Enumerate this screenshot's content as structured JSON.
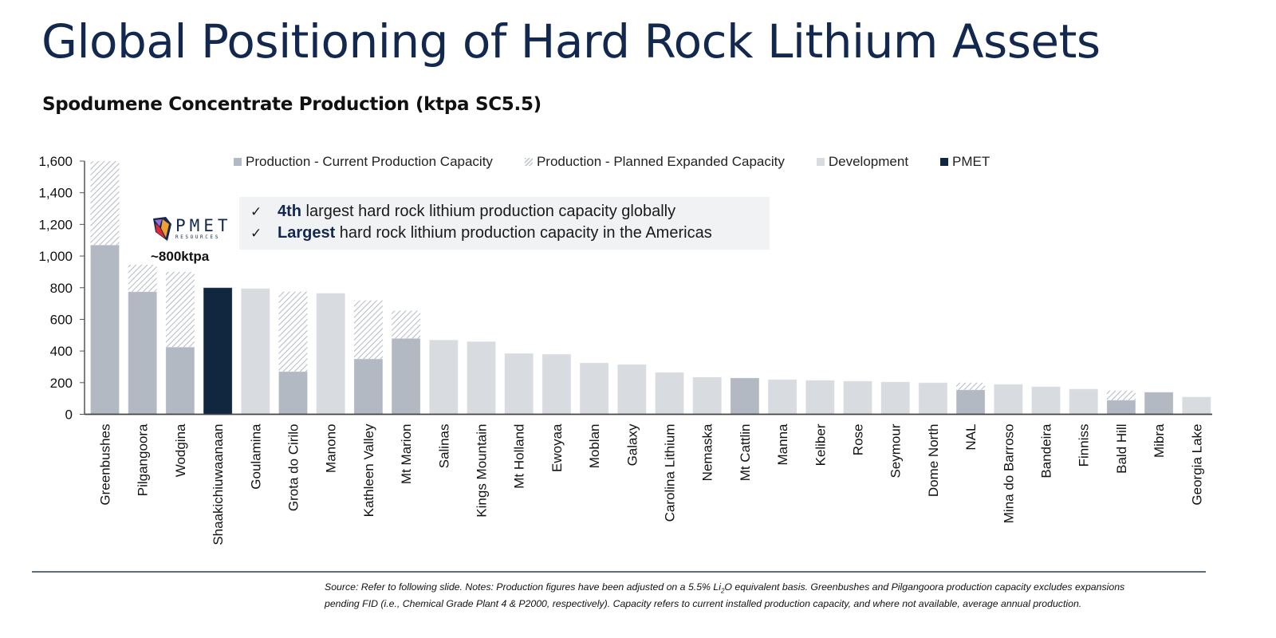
{
  "header": {
    "title": "Global Positioning of Hard Rock Lithium Assets",
    "subtitle": "Spodumene Concentrate Production (ktpa SC5.5)"
  },
  "legend": [
    {
      "label": "Production - Current Production Capacity",
      "key": "current",
      "color": "#b3b9c3"
    },
    {
      "label": "Production - Planned Expanded Capacity",
      "key": "expanded",
      "color": "#b3b9c3",
      "pattern": "hatch"
    },
    {
      "label": "Development",
      "key": "development",
      "color": "#d8dbe0"
    },
    {
      "label": "PMET",
      "key": "pmet",
      "color": "#11263f"
    }
  ],
  "callout": {
    "check_symbol": "✓",
    "lines": [
      {
        "bold": "4th",
        "rest": " largest hard rock lithium production capacity globally"
      },
      {
        "bold": "Largest",
        "rest": " hard rock lithium production capacity in the Americas"
      }
    ]
  },
  "logo": {
    "name": "PMET",
    "sub": "RESOURCES",
    "icon": "pmet-crystal-logo-icon"
  },
  "pmet_annotation": "~800ktpa",
  "footnote": {
    "pre": "Source: Refer to following slide. Notes: Production figures have been adjusted on a 5.5% Li",
    "sub": "2",
    "post": "O equivalent basis. Greenbushes and Pilgangoora production capacity excludes expansions pending FID (i.e., Chemical Grade Plant 4 & P2000, respectively). Capacity refers to current installed production capacity, and where not available, average annual production."
  },
  "chart_data": {
    "type": "bar",
    "stacked": true,
    "title": "Spodumene Concentrate Production (ktpa SC5.5)",
    "xlabel": "",
    "ylabel": "",
    "ylim": [
      0,
      1600
    ],
    "yticks": [
      0,
      200,
      400,
      600,
      800,
      1000,
      1200,
      1400,
      1600
    ],
    "ytick_labels": [
      "0",
      "200",
      "400",
      "600",
      "800",
      "1,000",
      "1,200",
      "1,400",
      "1,600"
    ],
    "grid": false,
    "legend_position": "top",
    "categories": [
      "Greenbushes",
      "Pilgangoora",
      "Wodgina",
      "Shaakichiuwaanaan",
      "Goulamina",
      "Grota do Cirilo",
      "Manono",
      "Kathleen Valley",
      "Mt Marion",
      "Salinas",
      "Kings Mountain",
      "Mt Holland",
      "Ewoyaa",
      "Moblan",
      "Galaxy",
      "Carolina Lithium",
      "Nemaska",
      "Mt Cattlin",
      "Manna",
      "Keliber",
      "Rose",
      "Seymour",
      "Dome North",
      "NAL",
      "Mina do Barroso",
      "Bandeira",
      "Finniss",
      "Bald Hill",
      "Mibra",
      "Georgia Lake"
    ],
    "bar_type": [
      "production",
      "production",
      "production",
      "pmet",
      "development",
      "production",
      "development",
      "production",
      "production",
      "development",
      "development",
      "development",
      "development",
      "development",
      "development",
      "development",
      "development",
      "production",
      "development",
      "development",
      "development",
      "development",
      "development",
      "production",
      "development",
      "development",
      "development",
      "production",
      "production",
      "development"
    ],
    "series": [
      {
        "name": "Production - Current Production Capacity",
        "values": [
          1070,
          775,
          425,
          0,
          0,
          270,
          0,
          350,
          480,
          0,
          0,
          0,
          0,
          0,
          0,
          0,
          0,
          230,
          0,
          0,
          0,
          0,
          0,
          155,
          0,
          0,
          0,
          90,
          140,
          0
        ]
      },
      {
        "name": "Production - Planned Expanded Capacity",
        "values": [
          530,
          170,
          475,
          0,
          0,
          505,
          0,
          370,
          175,
          0,
          0,
          0,
          0,
          0,
          0,
          0,
          0,
          0,
          0,
          0,
          0,
          0,
          0,
          45,
          0,
          0,
          0,
          60,
          0,
          0
        ]
      },
      {
        "name": "Development",
        "values": [
          0,
          0,
          0,
          0,
          795,
          0,
          765,
          0,
          0,
          470,
          460,
          385,
          380,
          325,
          315,
          265,
          235,
          0,
          220,
          215,
          210,
          205,
          200,
          0,
          190,
          175,
          160,
          0,
          0,
          110
        ]
      },
      {
        "name": "PMET",
        "values": [
          0,
          0,
          0,
          800,
          0,
          0,
          0,
          0,
          0,
          0,
          0,
          0,
          0,
          0,
          0,
          0,
          0,
          0,
          0,
          0,
          0,
          0,
          0,
          0,
          0,
          0,
          0,
          0,
          0,
          0
        ]
      }
    ],
    "annotations": [
      "~800ktpa"
    ]
  }
}
